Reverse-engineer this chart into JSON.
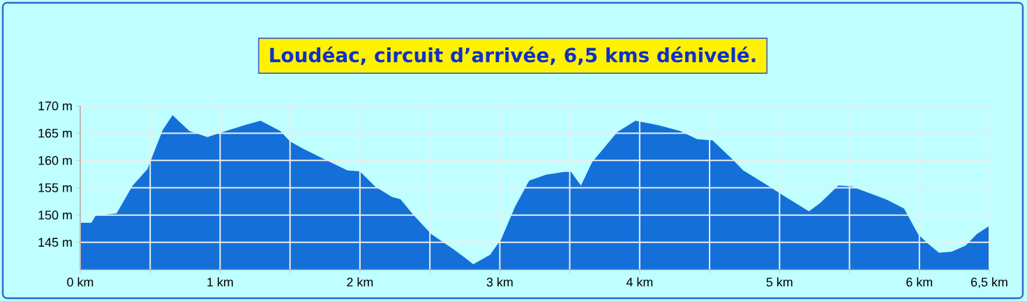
{
  "chart_data": {
    "type": "area",
    "title": "Loudéac, circuit d’arrivée, 6,5 kms dénivelé.",
    "x": [
      0,
      0.08,
      0.11,
      0.26,
      0.28,
      0.375,
      0.48,
      0.59,
      0.66,
      0.78,
      0.91,
      0.99,
      1.09,
      1.19,
      1.29,
      1.43,
      1.5,
      1.59,
      1.74,
      1.91,
      2.0,
      2.11,
      2.23,
      2.29,
      2.38,
      2.51,
      2.66,
      2.74,
      2.81,
      2.93,
      3.01,
      3.11,
      3.21,
      3.33,
      3.46,
      3.51,
      3.58,
      3.66,
      3.84,
      3.97,
      4.13,
      4.29,
      4.41,
      4.52,
      4.66,
      4.74,
      4.93,
      5.02,
      5.21,
      5.29,
      5.42,
      5.51,
      5.76,
      5.89,
      5.99,
      6.06,
      6.14,
      6.23,
      6.33,
      6.41,
      6.5
    ],
    "values": [
      148.6,
      148.6,
      149.9,
      150.3,
      151.2,
      155.4,
      158.4,
      165.6,
      168.3,
      165.4,
      164.3,
      165.0,
      165.8,
      166.6,
      167.3,
      165.4,
      163.5,
      162.2,
      160.3,
      158.2,
      158.0,
      155.2,
      153.3,
      152.9,
      150.1,
      146.5,
      143.9,
      142.4,
      141.0,
      142.7,
      145.6,
      151.6,
      156.3,
      157.4,
      157.9,
      157.9,
      155.4,
      159.7,
      165.2,
      167.3,
      166.5,
      165.4,
      163.9,
      163.7,
      160.3,
      158.2,
      155.2,
      153.7,
      150.7,
      152.2,
      155.4,
      155.3,
      152.9,
      151.2,
      146.5,
      144.8,
      143.1,
      143.3,
      144.4,
      146.5,
      148.0
    ],
    "color": "#1470d8",
    "xlim": [
      0,
      6.5
    ],
    "ylim": [
      140,
      170
    ],
    "xticks": [
      {
        "value": 0,
        "label": "0 km"
      },
      {
        "value": 0.5,
        "label": null
      },
      {
        "value": 1,
        "label": "1 km"
      },
      {
        "value": 1.5,
        "label": null
      },
      {
        "value": 2,
        "label": "2 km"
      },
      {
        "value": 2.5,
        "label": null
      },
      {
        "value": 3,
        "label": "3 km"
      },
      {
        "value": 3.5,
        "label": null
      },
      {
        "value": 4,
        "label": "4 km"
      },
      {
        "value": 4.5,
        "label": null
      },
      {
        "value": 5,
        "label": "5 km"
      },
      {
        "value": 5.5,
        "label": null
      },
      {
        "value": 6,
        "label": "6 km"
      },
      {
        "value": 6.5,
        "label": "6,5 km"
      }
    ],
    "yticks": [
      {
        "value": 145,
        "label": "145 m"
      },
      {
        "value": 150,
        "label": "150 m"
      },
      {
        "value": 155,
        "label": "155 m"
      },
      {
        "value": 160,
        "label": "160 m"
      },
      {
        "value": 165,
        "label": "165 m"
      },
      {
        "value": 170,
        "label": "170 m"
      }
    ],
    "grid": true
  }
}
